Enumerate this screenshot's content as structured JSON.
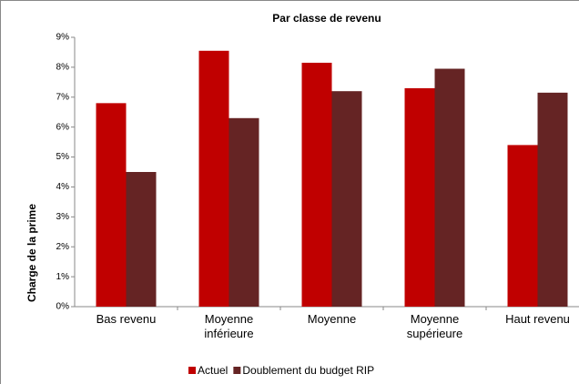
{
  "chart_data": {
    "type": "bar",
    "subtitle": "Par classe de revenu",
    "y_label": "Charge de la prime",
    "categories": [
      "Bas revenu",
      "Moyenne inférieure",
      "Moyenne",
      "Moyenne supérieure",
      "Haut revenu"
    ],
    "series": [
      {
        "name": "Actuel",
        "color": "#c00000",
        "values": [
          6.8,
          8.55,
          8.15,
          7.3,
          5.4
        ]
      },
      {
        "name": "Doublement du budget RIP",
        "color": "#652424",
        "values": [
          4.5,
          6.3,
          7.2,
          7.95,
          7.15
        ]
      }
    ],
    "ylim": [
      0,
      9
    ],
    "yticks": [
      {
        "value": 0,
        "label": "0%"
      },
      {
        "value": 1,
        "label": "1%"
      },
      {
        "value": 2,
        "label": "2%"
      },
      {
        "value": 3,
        "label": "3%"
      },
      {
        "value": 4,
        "label": "4%"
      },
      {
        "value": 5,
        "label": "5%"
      },
      {
        "value": 6,
        "label": "6%"
      },
      {
        "value": 7,
        "label": "7%"
      },
      {
        "value": 8,
        "label": "8%"
      },
      {
        "value": 9,
        "label": "9%"
      }
    ],
    "grid": false,
    "legend": "bottom"
  }
}
